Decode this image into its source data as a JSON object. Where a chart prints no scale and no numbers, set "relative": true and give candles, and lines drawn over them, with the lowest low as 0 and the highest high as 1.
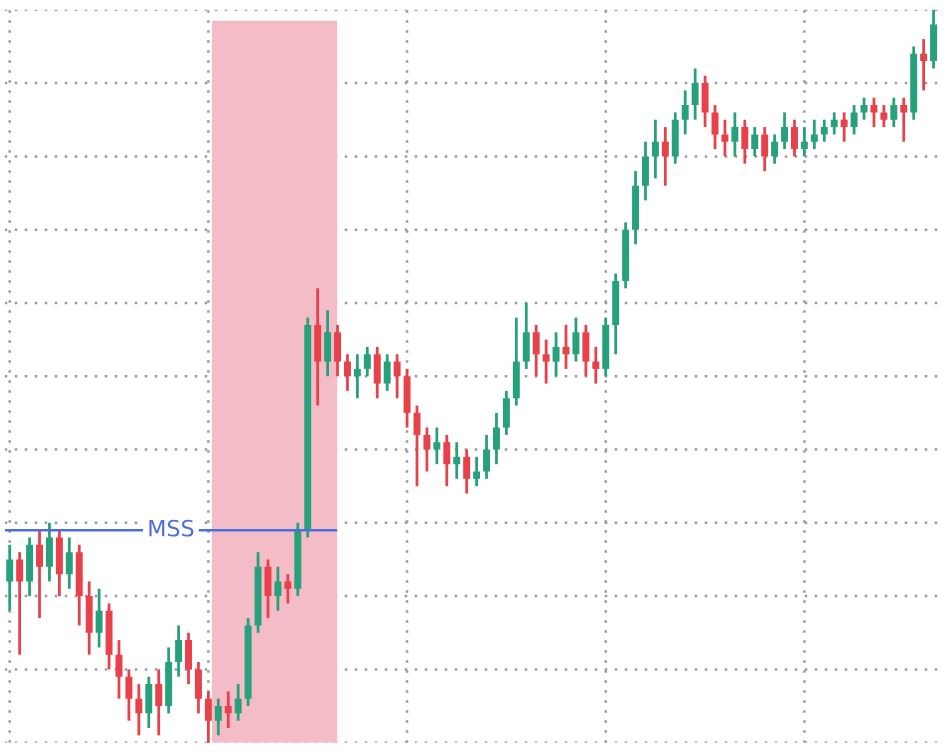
{
  "chart_data": {
    "type": "candlestick",
    "relative": true,
    "grid": true,
    "tick_labels": false,
    "categories": [
      null,
      null,
      null,
      null,
      null,
      null,
      null,
      null,
      null,
      null,
      null,
      null,
      null,
      null,
      null,
      null,
      null,
      null,
      null,
      null,
      null,
      null,
      null,
      null,
      null,
      null,
      null,
      null,
      null,
      null,
      null,
      null,
      null,
      null,
      null,
      null,
      null,
      null,
      null,
      null,
      null,
      null,
      null,
      null,
      null,
      null,
      null,
      null,
      null,
      null,
      null,
      null,
      null,
      null,
      null,
      null,
      null,
      null,
      null,
      null,
      null,
      null,
      null,
      null,
      null,
      null,
      null,
      null,
      null,
      null,
      null,
      null,
      null,
      null,
      null,
      null,
      null,
      null,
      null,
      null,
      null,
      null,
      null,
      null,
      null,
      null,
      null,
      null,
      null,
      null,
      null,
      null,
      null,
      null
    ],
    "ohlc": [
      [
        0.22,
        0.27,
        0.18,
        0.25
      ],
      [
        0.25,
        0.26,
        0.12,
        0.22
      ],
      [
        0.22,
        0.28,
        0.2,
        0.27
      ],
      [
        0.27,
        0.29,
        0.17,
        0.24
      ],
      [
        0.24,
        0.3,
        0.22,
        0.28
      ],
      [
        0.28,
        0.29,
        0.2,
        0.23
      ],
      [
        0.23,
        0.28,
        0.21,
        0.26
      ],
      [
        0.26,
        0.27,
        0.16,
        0.2
      ],
      [
        0.2,
        0.22,
        0.12,
        0.15
      ],
      [
        0.15,
        0.21,
        0.13,
        0.18
      ],
      [
        0.18,
        0.19,
        0.1,
        0.12
      ],
      [
        0.12,
        0.14,
        0.06,
        0.09
      ],
      [
        0.09,
        0.1,
        0.03,
        0.06
      ],
      [
        0.06,
        0.08,
        0.01,
        0.04
      ],
      [
        0.04,
        0.09,
        0.02,
        0.08
      ],
      [
        0.08,
        0.1,
        0.01,
        0.05
      ],
      [
        0.05,
        0.13,
        0.04,
        0.11
      ],
      [
        0.11,
        0.16,
        0.09,
        0.14
      ],
      [
        0.14,
        0.15,
        0.08,
        0.1
      ],
      [
        0.1,
        0.11,
        0.04,
        0.06
      ],
      [
        0.06,
        0.07,
        0.0,
        0.03
      ],
      [
        0.03,
        0.06,
        0.01,
        0.05
      ],
      [
        0.05,
        0.07,
        0.02,
        0.04
      ],
      [
        0.04,
        0.08,
        0.03,
        0.06
      ],
      [
        0.06,
        0.17,
        0.05,
        0.16
      ],
      [
        0.16,
        0.26,
        0.15,
        0.24
      ],
      [
        0.24,
        0.25,
        0.17,
        0.2
      ],
      [
        0.2,
        0.24,
        0.18,
        0.22
      ],
      [
        0.22,
        0.23,
        0.19,
        0.21
      ],
      [
        0.21,
        0.3,
        0.2,
        0.29
      ],
      [
        0.29,
        0.58,
        0.28,
        0.57
      ],
      [
        0.57,
        0.62,
        0.46,
        0.52
      ],
      [
        0.52,
        0.59,
        0.5,
        0.56
      ],
      [
        0.56,
        0.57,
        0.5,
        0.52
      ],
      [
        0.52,
        0.53,
        0.48,
        0.5
      ],
      [
        0.5,
        0.53,
        0.47,
        0.51
      ],
      [
        0.51,
        0.54,
        0.5,
        0.53
      ],
      [
        0.53,
        0.54,
        0.47,
        0.49
      ],
      [
        0.49,
        0.53,
        0.48,
        0.52
      ],
      [
        0.52,
        0.53,
        0.47,
        0.5
      ],
      [
        0.5,
        0.51,
        0.43,
        0.45
      ],
      [
        0.45,
        0.46,
        0.35,
        0.42
      ],
      [
        0.42,
        0.43,
        0.37,
        0.4
      ],
      [
        0.4,
        0.43,
        0.38,
        0.41
      ],
      [
        0.41,
        0.42,
        0.35,
        0.38
      ],
      [
        0.38,
        0.41,
        0.36,
        0.39
      ],
      [
        0.39,
        0.4,
        0.34,
        0.36
      ],
      [
        0.36,
        0.39,
        0.35,
        0.37
      ],
      [
        0.37,
        0.42,
        0.36,
        0.4
      ],
      [
        0.4,
        0.45,
        0.38,
        0.43
      ],
      [
        0.43,
        0.48,
        0.42,
        0.47
      ],
      [
        0.47,
        0.58,
        0.46,
        0.52
      ],
      [
        0.52,
        0.6,
        0.51,
        0.56
      ],
      [
        0.56,
        0.57,
        0.5,
        0.53
      ],
      [
        0.53,
        0.55,
        0.49,
        0.52
      ],
      [
        0.52,
        0.56,
        0.5,
        0.54
      ],
      [
        0.54,
        0.57,
        0.51,
        0.53
      ],
      [
        0.53,
        0.58,
        0.52,
        0.56
      ],
      [
        0.56,
        0.57,
        0.5,
        0.52
      ],
      [
        0.52,
        0.54,
        0.49,
        0.51
      ],
      [
        0.51,
        0.58,
        0.5,
        0.57
      ],
      [
        0.57,
        0.64,
        0.53,
        0.63
      ],
      [
        0.63,
        0.71,
        0.62,
        0.7
      ],
      [
        0.7,
        0.78,
        0.68,
        0.76
      ],
      [
        0.76,
        0.82,
        0.74,
        0.8
      ],
      [
        0.8,
        0.85,
        0.77,
        0.82
      ],
      [
        0.82,
        0.84,
        0.76,
        0.8
      ],
      [
        0.8,
        0.86,
        0.79,
        0.85
      ],
      [
        0.85,
        0.89,
        0.83,
        0.87
      ],
      [
        0.87,
        0.92,
        0.85,
        0.9
      ],
      [
        0.9,
        0.91,
        0.84,
        0.86
      ],
      [
        0.86,
        0.87,
        0.81,
        0.83
      ],
      [
        0.83,
        0.85,
        0.8,
        0.82
      ],
      [
        0.82,
        0.86,
        0.8,
        0.84
      ],
      [
        0.84,
        0.85,
        0.79,
        0.81
      ],
      [
        0.81,
        0.84,
        0.8,
        0.83
      ],
      [
        0.83,
        0.84,
        0.78,
        0.8
      ],
      [
        0.8,
        0.83,
        0.79,
        0.82
      ],
      [
        0.82,
        0.86,
        0.81,
        0.84
      ],
      [
        0.84,
        0.85,
        0.8,
        0.81
      ],
      [
        0.81,
        0.84,
        0.8,
        0.82
      ],
      [
        0.82,
        0.85,
        0.81,
        0.83
      ],
      [
        0.83,
        0.85,
        0.82,
        0.84
      ],
      [
        0.84,
        0.86,
        0.83,
        0.85
      ],
      [
        0.85,
        0.86,
        0.82,
        0.84
      ],
      [
        0.84,
        0.87,
        0.83,
        0.86
      ],
      [
        0.86,
        0.88,
        0.85,
        0.87
      ],
      [
        0.87,
        0.88,
        0.84,
        0.86
      ],
      [
        0.86,
        0.87,
        0.84,
        0.85
      ],
      [
        0.85,
        0.88,
        0.84,
        0.87
      ],
      [
        0.87,
        0.88,
        0.82,
        0.86
      ],
      [
        0.86,
        0.95,
        0.85,
        0.94
      ],
      [
        0.94,
        0.96,
        0.89,
        0.93
      ],
      [
        0.93,
        1.0,
        0.92,
        0.98
      ]
    ],
    "colors": [
      "#26a17b",
      "#e8414a",
      "#26a17b",
      "#e8414a",
      "#26a17b",
      "#e8414a",
      "#26a17b",
      "#e8414a",
      "#e8414a",
      "#26a17b",
      "#e8414a",
      "#e8414a",
      "#e8414a",
      "#e8414a",
      "#26a17b",
      "#e8414a",
      "#26a17b",
      "#26a17b",
      "#e8414a",
      "#e8414a",
      "#e8414a",
      "#26a17b",
      "#e8414a",
      "#26a17b",
      "#26a17b",
      "#26a17b",
      "#e8414a",
      "#26a17b",
      "#e8414a",
      "#26a17b",
      "#26a17b",
      "#e8414a",
      "#26a17b",
      "#e8414a",
      "#e8414a",
      "#26a17b",
      "#26a17b",
      "#e8414a",
      "#26a17b",
      "#e8414a",
      "#e8414a",
      "#e8414a",
      "#e8414a",
      "#26a17b",
      "#e8414a",
      "#26a17b",
      "#e8414a",
      "#26a17b",
      "#26a17b",
      "#26a17b",
      "#26a17b",
      "#26a17b",
      "#26a17b",
      "#e8414a",
      "#e8414a",
      "#26a17b",
      "#e8414a",
      "#26a17b",
      "#e8414a",
      "#e8414a",
      "#26a17b",
      "#26a17b",
      "#26a17b",
      "#26a17b",
      "#26a17b",
      "#26a17b",
      "#e8414a",
      "#26a17b",
      "#26a17b",
      "#26a17b",
      "#e8414a",
      "#e8414a",
      "#e8414a",
      "#26a17b",
      "#e8414a",
      "#26a17b",
      "#e8414a",
      "#26a17b",
      "#26a17b",
      "#e8414a",
      "#26a17b",
      "#26a17b",
      "#26a17b",
      "#26a17b",
      "#e8414a",
      "#26a17b",
      "#26a17b",
      "#e8414a",
      "#e8414a",
      "#26a17b",
      "#e8414a",
      "#26a17b",
      "#e8414a",
      "#26a17b"
    ],
    "ref_lines": [
      {
        "axis": "y",
        "value": 0.29,
        "label": "MSS",
        "color": "#4a6fdc"
      }
    ]
  }
}
